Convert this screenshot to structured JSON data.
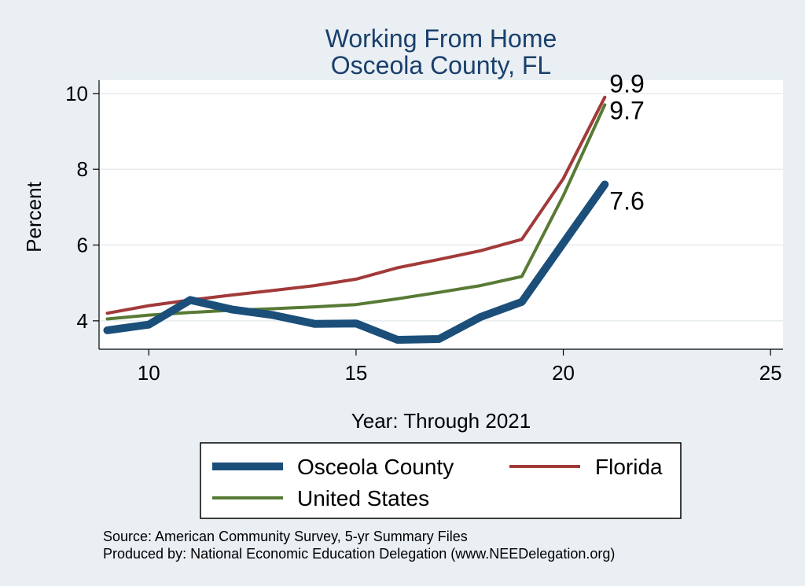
{
  "chart_data": {
    "type": "line",
    "title": "Working From Home",
    "subtitle": "Osceola County, FL",
    "xlabel": "Year: Through 2021",
    "ylabel": "Percent",
    "xlim": [
      8.8,
      25.3
    ],
    "ylim": [
      3.25,
      10.35
    ],
    "x_ticks": [
      10,
      15,
      20,
      25
    ],
    "y_ticks": [
      4,
      6,
      8,
      10
    ],
    "grid": true,
    "legend_position": "bottom",
    "x": [
      9,
      10,
      11,
      12,
      13,
      14,
      15,
      16,
      17,
      18,
      19,
      20,
      21
    ],
    "series": [
      {
        "name": "Osceola County",
        "color": "#1b4f7a",
        "values": [
          3.75,
          3.9,
          4.55,
          4.3,
          4.15,
          3.92,
          3.93,
          3.5,
          3.52,
          4.1,
          4.5,
          6.05,
          7.6
        ],
        "end_label": "7.6"
      },
      {
        "name": "Florida",
        "color": "#a23a3a",
        "values": [
          4.2,
          4.4,
          4.55,
          4.68,
          4.8,
          4.93,
          5.1,
          5.4,
          5.62,
          5.85,
          6.15,
          7.75,
          9.9
        ],
        "end_label": "9.9"
      },
      {
        "name": "United States",
        "color": "#587a35",
        "values": [
          4.05,
          4.15,
          4.22,
          4.28,
          4.32,
          4.37,
          4.43,
          4.58,
          4.75,
          4.93,
          5.17,
          7.3,
          9.7
        ],
        "end_label": "9.7"
      }
    ]
  },
  "notes": {
    "source": "Source: American Community Survey, 5-yr Summary Files",
    "produced_by": "Produced by: National Economic Education Delegation (www.NEEDelegation.org)"
  }
}
